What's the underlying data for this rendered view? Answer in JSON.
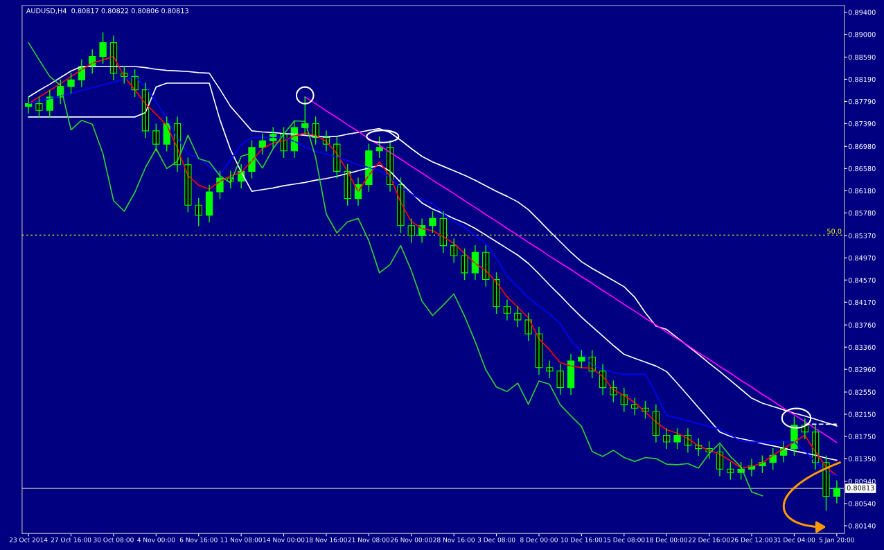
{
  "chart_data": {
    "type": "candlestick",
    "title": "AUDUSD,H4  0.80817 0.80822 0.80806 0.80813",
    "categories": [
      "23 Oct 2014",
      null,
      null,
      null,
      "27 Oct 16:00",
      null,
      null,
      null,
      "30 Oct 08:00",
      null,
      null,
      null,
      "4 Nov 00:00",
      null,
      null,
      null,
      "6 Nov 16:00",
      null,
      null,
      null,
      "11 Nov 08:00",
      null,
      null,
      null,
      "14 Nov 00:00",
      null,
      null,
      null,
      "18 Nov 16:00",
      null,
      null,
      null,
      "21 Nov 08:00",
      null,
      null,
      null,
      "26 Nov 00:00",
      null,
      null,
      null,
      "28 Nov 16:00",
      null,
      null,
      null,
      "3 Dec 08:00",
      null,
      null,
      null,
      "8 Dec 00:00",
      null,
      null,
      null,
      "10 Dec 16:00",
      null,
      null,
      null,
      "15 Dec 08:00",
      null,
      null,
      null,
      "18 Dec 00:00",
      null,
      null,
      null,
      "22 Dec 16:00",
      null,
      null,
      null,
      "26 Dec 12:00",
      null,
      null,
      null,
      "31 Dec 04:00",
      null,
      null,
      null,
      "5 Jan 20:00"
    ],
    "ohlc": [
      [
        0.877,
        0.8787,
        0.8758,
        0.8775
      ],
      [
        0.8775,
        0.8787,
        0.8751,
        0.8763
      ],
      [
        0.8763,
        0.8799,
        0.8751,
        0.8787
      ],
      [
        0.8787,
        0.8818,
        0.8775,
        0.8806
      ],
      [
        0.8806,
        0.883,
        0.8794,
        0.8818
      ],
      [
        0.8818,
        0.8854,
        0.8806,
        0.8842
      ],
      [
        0.8842,
        0.8872,
        0.883,
        0.886
      ],
      [
        0.886,
        0.8903,
        0.8848,
        0.8885
      ],
      [
        0.8885,
        0.8897,
        0.8818,
        0.883
      ],
      [
        0.883,
        0.8842,
        0.8812,
        0.8824
      ],
      [
        0.8824,
        0.8836,
        0.8788,
        0.88
      ],
      [
        0.88,
        0.8812,
        0.8714,
        0.8726
      ],
      [
        0.8726,
        0.8738,
        0.869,
        0.8702
      ],
      [
        0.8702,
        0.8751,
        0.869,
        0.8739
      ],
      [
        0.8739,
        0.8751,
        0.8653,
        0.8665
      ],
      [
        0.8665,
        0.8677,
        0.858,
        0.8592
      ],
      [
        0.8592,
        0.8604,
        0.8555,
        0.8574
      ],
      [
        0.8574,
        0.8628,
        0.8562,
        0.8616
      ],
      [
        0.8616,
        0.8653,
        0.8604,
        0.8641
      ],
      [
        0.8641,
        0.8653,
        0.8623,
        0.8635
      ],
      [
        0.8635,
        0.8665,
        0.8623,
        0.8653
      ],
      [
        0.8653,
        0.8708,
        0.8641,
        0.8696
      ],
      [
        0.8696,
        0.872,
        0.8684,
        0.8708
      ],
      [
        0.8708,
        0.8732,
        0.8696,
        0.872
      ],
      [
        0.872,
        0.8732,
        0.8678,
        0.869
      ],
      [
        0.869,
        0.8744,
        0.8678,
        0.8732
      ],
      [
        0.8732,
        0.8787,
        0.872,
        0.8739
      ],
      [
        0.8739,
        0.8751,
        0.8702,
        0.8714
      ],
      [
        0.8714,
        0.8726,
        0.869,
        0.8702
      ],
      [
        0.8702,
        0.8714,
        0.8641,
        0.8653
      ],
      [
        0.8653,
        0.8665,
        0.8592,
        0.8604
      ],
      [
        0.8604,
        0.8641,
        0.8592,
        0.8629
      ],
      [
        0.8629,
        0.8702,
        0.8617,
        0.869
      ],
      [
        0.869,
        0.8715,
        0.8678,
        0.8696
      ],
      [
        0.8696,
        0.8708,
        0.8617,
        0.8629
      ],
      [
        0.8629,
        0.8641,
        0.8543,
        0.8555
      ],
      [
        0.8555,
        0.8567,
        0.8525,
        0.8537
      ],
      [
        0.8537,
        0.8567,
        0.8525,
        0.8555
      ],
      [
        0.8555,
        0.858,
        0.8543,
        0.8568
      ],
      [
        0.8568,
        0.858,
        0.8507,
        0.8519
      ],
      [
        0.8519,
        0.8531,
        0.8489,
        0.8501
      ],
      [
        0.8501,
        0.8513,
        0.8458,
        0.847
      ],
      [
        0.847,
        0.8519,
        0.8458,
        0.8507
      ],
      [
        0.8507,
        0.8519,
        0.8446,
        0.8458
      ],
      [
        0.8458,
        0.847,
        0.8397,
        0.8409
      ],
      [
        0.8409,
        0.8421,
        0.8385,
        0.8397
      ],
      [
        0.8397,
        0.8409,
        0.8373,
        0.8385
      ],
      [
        0.8385,
        0.8397,
        0.8348,
        0.836
      ],
      [
        0.836,
        0.8372,
        0.8287,
        0.8299
      ],
      [
        0.8299,
        0.8311,
        0.8281,
        0.8293
      ],
      [
        0.8293,
        0.8305,
        0.8251,
        0.8263
      ],
      [
        0.8263,
        0.8323,
        0.8251,
        0.8311
      ],
      [
        0.8311,
        0.833,
        0.8299,
        0.8318
      ],
      [
        0.8318,
        0.833,
        0.8281,
        0.8293
      ],
      [
        0.8293,
        0.8305,
        0.8251,
        0.8263
      ],
      [
        0.8263,
        0.8275,
        0.8238,
        0.825
      ],
      [
        0.825,
        0.8262,
        0.822,
        0.8232
      ],
      [
        0.8232,
        0.8244,
        0.8214,
        0.8226
      ],
      [
        0.8226,
        0.8238,
        0.8208,
        0.822
      ],
      [
        0.822,
        0.8232,
        0.8165,
        0.8177
      ],
      [
        0.8177,
        0.8189,
        0.8153,
        0.8165
      ],
      [
        0.8165,
        0.8189,
        0.8153,
        0.8177
      ],
      [
        0.8177,
        0.8189,
        0.8147,
        0.8159
      ],
      [
        0.8159,
        0.8171,
        0.8141,
        0.8153
      ],
      [
        0.8153,
        0.8165,
        0.8135,
        0.8147
      ],
      [
        0.8147,
        0.8159,
        0.8104,
        0.8116
      ],
      [
        0.8116,
        0.8128,
        0.8098,
        0.811
      ],
      [
        0.811,
        0.8128,
        0.8098,
        0.8116
      ],
      [
        0.8116,
        0.8134,
        0.8104,
        0.8122
      ],
      [
        0.8122,
        0.814,
        0.811,
        0.8128
      ],
      [
        0.8128,
        0.8153,
        0.8116,
        0.8141
      ],
      [
        0.8141,
        0.8165,
        0.8129,
        0.8153
      ],
      [
        0.8153,
        0.821,
        0.8141,
        0.8195
      ],
      [
        0.8195,
        0.8207,
        0.8171,
        0.8183
      ],
      [
        0.8183,
        0.8195,
        0.8116,
        0.8128
      ],
      [
        0.8128,
        0.814,
        0.8042,
        0.8067
      ],
      [
        0.8067,
        0.8095,
        0.8055,
        0.80813
      ]
    ],
    "color": "#00ff00",
    "series": [
      {
        "type": "line",
        "color": "#ffffff",
        "values": [
          0.8787,
          0.8799,
          0.881,
          0.8822,
          0.8834,
          0.8842,
          0.8842,
          0.8842,
          0.8842,
          0.8842,
          0.8842,
          0.884,
          0.8837,
          0.8835,
          0.8834,
          0.8833,
          0.8831,
          0.883,
          0.8801,
          0.877,
          0.8748,
          0.8726,
          0.8724,
          0.8723,
          0.8721,
          0.872,
          0.8718,
          0.8716,
          0.8715,
          0.8716,
          0.872,
          0.8723,
          0.8727,
          0.873,
          0.8723,
          0.8709,
          0.8694,
          0.868,
          0.867,
          0.8662,
          0.8654,
          0.8646,
          0.8637,
          0.8627,
          0.8617,
          0.8608,
          0.8598,
          0.8584,
          0.8565,
          0.8545,
          0.8526,
          0.8507,
          0.849,
          0.8478,
          0.8467,
          0.8456,
          0.8445,
          0.8426,
          0.8398,
          0.8374,
          0.8368,
          0.8353,
          0.8338,
          0.8323,
          0.8307,
          0.8292,
          0.8276,
          0.826,
          0.8244,
          0.8235,
          0.8229,
          0.8223,
          0.8217,
          0.8212,
          0.8206,
          0.82,
          0.8194
        ]
      },
      {
        "type": "line",
        "color": "#ffffff",
        "values": [
          0.8751,
          0.8751,
          0.8751,
          0.8751,
          0.8751,
          0.8751,
          0.8751,
          0.8751,
          0.8751,
          0.8751,
          0.8751,
          0.8759,
          0.8805,
          0.8812,
          0.8812,
          0.8812,
          0.8812,
          0.8812,
          0.8746,
          0.8692,
          0.8652,
          0.8617,
          0.862,
          0.8623,
          0.8627,
          0.863,
          0.8633,
          0.8637,
          0.864,
          0.8644,
          0.8649,
          0.8654,
          0.8659,
          0.8664,
          0.8653,
          0.8633,
          0.8614,
          0.8596,
          0.8585,
          0.8577,
          0.8568,
          0.856,
          0.855,
          0.8538,
          0.8526,
          0.8514,
          0.8502,
          0.8487,
          0.8468,
          0.8448,
          0.8429,
          0.8409,
          0.839,
          0.8373,
          0.8356,
          0.8339,
          0.8323,
          0.8316,
          0.8309,
          0.8302,
          0.8292,
          0.8271,
          0.8249,
          0.8227,
          0.8205,
          0.8183,
          0.8175,
          0.8171,
          0.8167,
          0.8162,
          0.8158,
          0.8154,
          0.8149,
          0.8145,
          0.8141,
          0.8136,
          0.8132
        ]
      },
      {
        "type": "line",
        "color": "#ff0000",
        "values": [
          0.8775,
          0.8787,
          0.8799,
          0.8811,
          0.8824,
          0.8836,
          0.8848,
          0.8854,
          0.886,
          0.8824,
          0.88,
          0.8775,
          0.8756,
          0.8736,
          0.8695,
          0.8645,
          0.8628,
          0.8621,
          0.8635,
          0.8645,
          0.8651,
          0.8672,
          0.8694,
          0.8704,
          0.8708,
          0.8717,
          0.8722,
          0.8718,
          0.8707,
          0.8685,
          0.8653,
          0.8616,
          0.8646,
          0.867,
          0.8644,
          0.8597,
          0.8562,
          0.855,
          0.8546,
          0.8535,
          0.8523,
          0.8505,
          0.8487,
          0.8474,
          0.8453,
          0.8427,
          0.8408,
          0.8389,
          0.8351,
          0.8331,
          0.8308,
          0.8302,
          0.8299,
          0.8298,
          0.8283,
          0.8259,
          0.8249,
          0.8236,
          0.8219,
          0.8201,
          0.8187,
          0.8181,
          0.8171,
          0.8158,
          0.815,
          0.8143,
          0.8131,
          0.8118,
          0.8121,
          0.8127,
          0.8141,
          0.8153,
          0.8165,
          0.8177,
          0.8147,
          0.812,
          0.8104
        ]
      },
      {
        "type": "line",
        "color": "#0000ff",
        "values": [
          0.8775,
          0.878,
          0.8784,
          0.8789,
          0.8794,
          0.8799,
          0.8804,
          0.8809,
          0.8814,
          0.8819,
          0.8823,
          0.8806,
          0.8778,
          0.8748,
          0.8713,
          0.8685,
          0.8677,
          0.8662,
          0.8647,
          0.8674,
          0.8701,
          0.8714,
          0.8714,
          0.8714,
          0.8714,
          0.8707,
          0.8697,
          0.8689,
          0.8684,
          0.8679,
          0.8672,
          0.8665,
          0.866,
          0.8655,
          0.8642,
          0.8623,
          0.8612,
          0.8602,
          0.8595,
          0.8577,
          0.8562,
          0.8552,
          0.8537,
          0.8523,
          0.8496,
          0.8464,
          0.8445,
          0.8425,
          0.841,
          0.8396,
          0.8378,
          0.8348,
          0.8328,
          0.8304,
          0.8296,
          0.829,
          0.8287,
          0.8287,
          0.8287,
          0.8252,
          0.8213,
          0.8208,
          0.8203,
          0.8198,
          0.8193,
          0.8188,
          0.8178,
          0.8166,
          0.8165,
          0.8165,
          0.8165,
          0.8165,
          0.8165,
          0.8149,
          0.8129,
          0.8112,
          0.8104
        ]
      },
      {
        "type": "line",
        "color": "#32cd32",
        "values": [
          0.8885,
          0.8854,
          0.8824,
          0.8808,
          0.8728,
          0.8745,
          0.8738,
          0.8685,
          0.86,
          0.8581,
          0.8615,
          0.866,
          0.8694,
          0.8658,
          0.8671,
          0.8718,
          0.8676,
          0.867,
          0.8645,
          0.8632,
          0.868,
          0.8686,
          0.8659,
          0.8694,
          0.872,
          0.8744,
          0.8743,
          0.8678,
          0.8576,
          0.8542,
          0.8562,
          0.8568,
          0.8528,
          0.847,
          0.8485,
          0.8519,
          0.8474,
          0.8419,
          0.8393,
          0.8412,
          0.8432,
          0.8392,
          0.8346,
          0.8295,
          0.8264,
          0.8256,
          0.8271,
          0.8233,
          0.8275,
          0.8269,
          0.8232,
          0.8212,
          0.8193,
          0.8148,
          0.8139,
          0.815,
          0.8137,
          0.813,
          0.8137,
          0.8135,
          0.8125,
          0.8124,
          0.8126,
          0.8118,
          0.8144,
          0.8163,
          0.8139,
          0.812,
          0.8075,
          0.8068,
          null,
          null,
          null,
          null,
          null,
          null,
          null
        ]
      },
      {
        "type": "line",
        "color": "#ff00ff",
        "values": [
          null,
          null,
          null,
          null,
          null,
          null,
          null,
          null,
          null,
          null,
          null,
          null,
          null,
          null,
          null,
          null,
          null,
          null,
          null,
          null,
          null,
          null,
          null,
          null,
          null,
          null,
          0.8787,
          0.8775,
          0.8762,
          0.875,
          0.8737,
          0.8725,
          0.8712,
          0.87,
          0.8687,
          0.8675,
          0.8662,
          0.865,
          0.8637,
          0.8625,
          0.8613,
          0.86,
          0.8588,
          0.8575,
          0.8563,
          0.855,
          0.8538,
          0.8525,
          0.8513,
          0.85,
          0.8488,
          0.8476,
          0.8463,
          0.8451,
          0.8438,
          0.8426,
          0.8413,
          0.8401,
          0.8388,
          0.8376,
          0.8363,
          0.8351,
          0.8339,
          0.8326,
          0.8314,
          0.8301,
          0.8289,
          0.8276,
          0.8264,
          0.8251,
          0.8239,
          0.8226,
          0.8214,
          0.8202,
          0.8189,
          0.8177,
          0.8164
        ]
      },
      {
        "type": "line",
        "color": "#ffffff",
        "line_style": "dashed",
        "values": [
          null,
          null,
          null,
          null,
          null,
          null,
          null,
          null,
          null,
          null,
          null,
          null,
          null,
          null,
          null,
          null,
          null,
          null,
          null,
          null,
          null,
          null,
          null,
          null,
          null,
          null,
          null,
          null,
          null,
          null,
          null,
          null,
          null,
          null,
          null,
          null,
          null,
          null,
          null,
          null,
          null,
          null,
          null,
          null,
          null,
          null,
          null,
          null,
          null,
          null,
          null,
          null,
          null,
          null,
          null,
          null,
          null,
          null,
          null,
          null,
          null,
          null,
          null,
          null,
          null,
          null,
          null,
          null,
          null,
          null,
          null,
          null,
          null,
          0.8197,
          0.8197,
          0.8197,
          0.8197
        ]
      }
    ],
    "ylim": [
      0.8,
      0.8952
    ],
    "yticks": [
      {
        "value": 0.894,
        "label": "0.89400"
      },
      {
        "value": 0.89,
        "label": "0.89000"
      },
      {
        "value": 0.8859,
        "label": "0.88590"
      },
      {
        "value": 0.8819,
        "label": "0.88190"
      },
      {
        "value": 0.8779,
        "label": "0.87790"
      },
      {
        "value": 0.8739,
        "label": "0.87390"
      },
      {
        "value": 0.8698,
        "label": "0.86980"
      },
      {
        "value": 0.8658,
        "label": "0.86580"
      },
      {
        "value": 0.8618,
        "label": "0.86180"
      },
      {
        "value": 0.8578,
        "label": "0.85780"
      },
      {
        "value": 0.8537,
        "label": "0.85370"
      },
      {
        "value": 0.8497,
        "label": "0.84970"
      },
      {
        "value": 0.8457,
        "label": "0.84570"
      },
      {
        "value": 0.8417,
        "label": "0.84170"
      },
      {
        "value": 0.8376,
        "label": "0.83760"
      },
      {
        "value": 0.8336,
        "label": "0.83360"
      },
      {
        "value": 0.8296,
        "label": "0.82960"
      },
      {
        "value": 0.8255,
        "label": "0.82550"
      },
      {
        "value": 0.8215,
        "label": "0.82150"
      },
      {
        "value": 0.8175,
        "label": "0.81750"
      },
      {
        "value": 0.8135,
        "label": "0.81350"
      },
      {
        "value": 0.8094,
        "label": "0.80940"
      },
      {
        "value": 0.8054,
        "label": "0.80540"
      },
      {
        "value": 0.8014,
        "label": "0.80140"
      }
    ],
    "ref_lines": [
      {
        "axis": "y",
        "value": 0.8538,
        "color": "#ffff00",
        "line_style": "dotted"
      },
      {
        "axis": "y",
        "value": 0.80813,
        "label": "0.80813",
        "color": "#c0c0c0",
        "line_style": "solid"
      }
    ],
    "annotations": [
      "50.0"
    ],
    "grid": false,
    "legend": false
  }
}
